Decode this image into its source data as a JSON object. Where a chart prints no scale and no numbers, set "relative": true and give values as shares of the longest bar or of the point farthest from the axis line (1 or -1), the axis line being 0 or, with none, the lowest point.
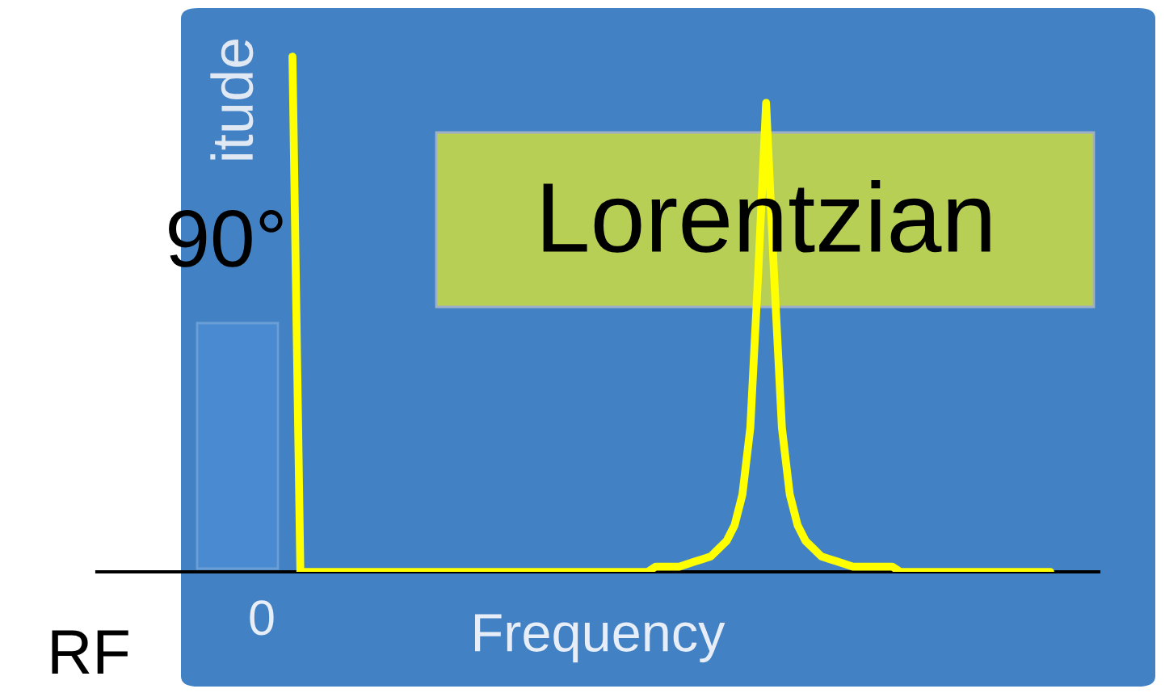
{
  "chart_data": {
    "type": "line",
    "relative": true,
    "xlabel": "Frequency",
    "ylabel": "itude",
    "annotations": [
      "Lorentzian",
      "90°",
      "0",
      "RF"
    ],
    "categories": [
      null,
      null,
      null,
      null,
      null,
      null,
      null,
      null,
      null,
      null,
      null,
      null,
      null,
      null,
      null,
      null,
      null,
      null,
      null,
      null,
      null,
      null,
      null,
      null,
      null,
      null,
      null,
      null,
      null,
      null,
      null,
      null,
      null,
      null,
      null,
      null,
      null,
      null,
      null,
      null,
      null,
      null,
      null,
      null,
      null,
      null,
      null,
      null,
      null,
      null,
      null,
      null,
      null,
      null,
      null,
      null,
      null,
      null,
      null,
      null,
      null,
      null,
      null,
      null,
      null,
      null,
      null,
      null,
      null,
      null,
      null,
      null,
      null,
      null,
      null,
      null,
      null,
      null,
      null,
      null,
      null,
      null,
      null,
      null,
      null,
      null,
      null,
      null,
      null,
      null,
      null,
      null,
      null,
      null,
      null,
      null,
      null
    ],
    "series": [
      {
        "color": "#ffff00",
        "values": [
          1,
          0,
          0,
          0,
          0,
          0,
          0,
          0,
          0,
          0,
          0,
          0,
          0,
          0,
          0,
          0,
          0,
          0,
          0,
          0,
          0,
          0,
          0,
          0,
          0,
          0,
          0,
          0,
          0,
          0,
          0,
          0,
          0,
          0,
          0,
          0,
          0,
          0,
          0,
          0,
          0,
          0,
          0,
          0,
          0,
          0,
          0.01,
          0.01,
          0.01,
          0.01,
          0.015,
          0.02,
          0.025,
          0.03,
          0.045,
          0.06,
          0.09,
          0.15,
          0.28,
          0.58,
          0.91,
          0.58,
          0.28,
          0.15,
          0.09,
          0.06,
          0.045,
          0.03,
          0.025,
          0.02,
          0.015,
          0.01,
          0.01,
          0.01,
          0.01,
          0.01,
          0.01,
          0,
          0,
          0,
          0,
          0,
          0,
          0,
          0,
          0,
          0,
          0,
          0,
          0,
          0,
          0,
          0,
          0,
          0,
          0,
          0
        ]
      }
    ]
  }
}
